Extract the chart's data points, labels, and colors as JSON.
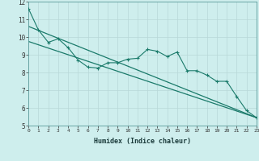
{
  "xlabel": "Humidex (Indice chaleur)",
  "bg_color": "#ceeeed",
  "line_color": "#1a7a6a",
  "grid_color": "#b8d8d8",
  "x_values": [
    0,
    1,
    2,
    3,
    4,
    5,
    6,
    7,
    8,
    9,
    10,
    11,
    12,
    13,
    14,
    15,
    16,
    17,
    18,
    19,
    20,
    21,
    22,
    23
  ],
  "line1": [
    11.6,
    10.4,
    9.7,
    9.9,
    9.4,
    8.7,
    8.3,
    8.25,
    8.55,
    8.55,
    8.75,
    8.8,
    9.3,
    9.2,
    8.9,
    9.15,
    8.1,
    8.1,
    7.85,
    7.5,
    7.5,
    6.65,
    5.85,
    5.45
  ],
  "line2_y": [
    10.6,
    5.45
  ],
  "line3_y": [
    9.75,
    5.45
  ],
  "ylim": [
    5,
    12
  ],
  "xlim": [
    0,
    23
  ],
  "yticks": [
    5,
    6,
    7,
    8,
    9,
    10,
    11,
    12
  ]
}
